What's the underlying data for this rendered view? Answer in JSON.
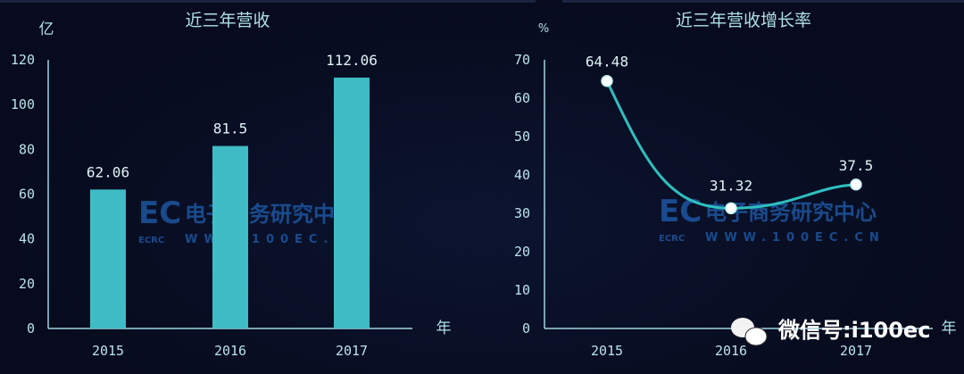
{
  "chart_data": [
    {
      "type": "bar",
      "title": "近三年营收",
      "ylabel": "亿",
      "xlabel": "年",
      "categories": [
        "2015",
        "2016",
        "2017"
      ],
      "values": [
        62.06,
        81.5,
        112.06
      ],
      "data_labels": [
        "62.06",
        "81.5",
        "112.06"
      ],
      "ylim": [
        0,
        120
      ],
      "yticks": [
        0,
        20,
        40,
        60,
        80,
        100,
        120
      ],
      "grid": false,
      "color": "#3fbcc6"
    },
    {
      "type": "line",
      "title": "近三年营收增长率",
      "ylabel": "%",
      "xlabel": "年",
      "categories": [
        "2015",
        "2016",
        "2017"
      ],
      "values": [
        64.48,
        31.32,
        37.5
      ],
      "data_labels": [
        "64.48",
        "31.32",
        "37.5"
      ],
      "ylim": [
        0,
        70
      ],
      "yticks": [
        0,
        10,
        20,
        30,
        40,
        50,
        60,
        70
      ],
      "grid": false,
      "smooth": true,
      "color": "#2fbfbf"
    }
  ],
  "watermark": {
    "cn": "电子商务研究中心",
    "abbr": "ECRC",
    "url": "WWW.100EC.CN",
    "logo": "EC"
  },
  "wechat": {
    "text": "微信号:i100ec",
    "icon": "wechat-icon"
  },
  "colors": {
    "background": "#070b1d",
    "axis": "#9fd3df",
    "text": "#aee0e6"
  }
}
